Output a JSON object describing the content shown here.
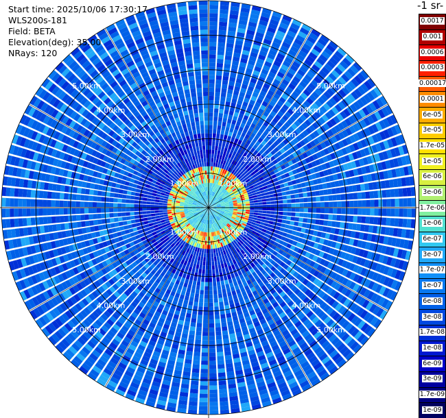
{
  "info": {
    "start_time": "Start time: 2025/10/06 17:30:17",
    "instrument": "WLS200s-181",
    "field": "Field: BETA",
    "elevation": "Elevation(deg): 35.00",
    "nrays": "NRays: 120"
  },
  "colorbar": {
    "title": "-1 sr-",
    "labels": [
      "0.0017",
      "0.001",
      "0.0006",
      "0.0003",
      "0.00017",
      "0.0001",
      "6e-05",
      "3e-05",
      "1.7e-05",
      "1e-05",
      "6e-06",
      "3e-06",
      "1.7e-06",
      "1e-06",
      "6e-07",
      "3e-07",
      "1.7e-07",
      "1e-07",
      "6e-08",
      "3e-08",
      "1.7e-08",
      "1e-08",
      "6e-09",
      "3e-09",
      "1.7e-09",
      "1e-09"
    ],
    "colors": [
      "#800000",
      "#b00000",
      "#e80000",
      "#ff2000",
      "#ff5a00",
      "#ff8c00",
      "#ffac00",
      "#ffcc00",
      "#ffe000",
      "#f0f020",
      "#d8f040",
      "#b0f070",
      "#80f0a0",
      "#50e0d0",
      "#30c8f0",
      "#20a8f8",
      "#1090f8",
      "#0878f0",
      "#0060e8",
      "#0048e0",
      "#0030d8",
      "#0018d0",
      "#0000c8",
      "#0000a0",
      "#000080",
      "#000060"
    ]
  },
  "chart_data": {
    "type": "ppi-polar",
    "field": "BETA",
    "nrays": 120,
    "elevation_deg": 35.0,
    "max_range_km": 6.0,
    "range_rings_km": [
      1.0,
      2.0,
      3.0,
      4.0,
      5.0
    ],
    "ring_labels": [
      "1.00km",
      "2.00km",
      "3.00km",
      "4.00km",
      "5.00km"
    ],
    "ring_label_bearings_deg": [
      -45,
      45,
      135,
      225
    ],
    "grid": true
  }
}
